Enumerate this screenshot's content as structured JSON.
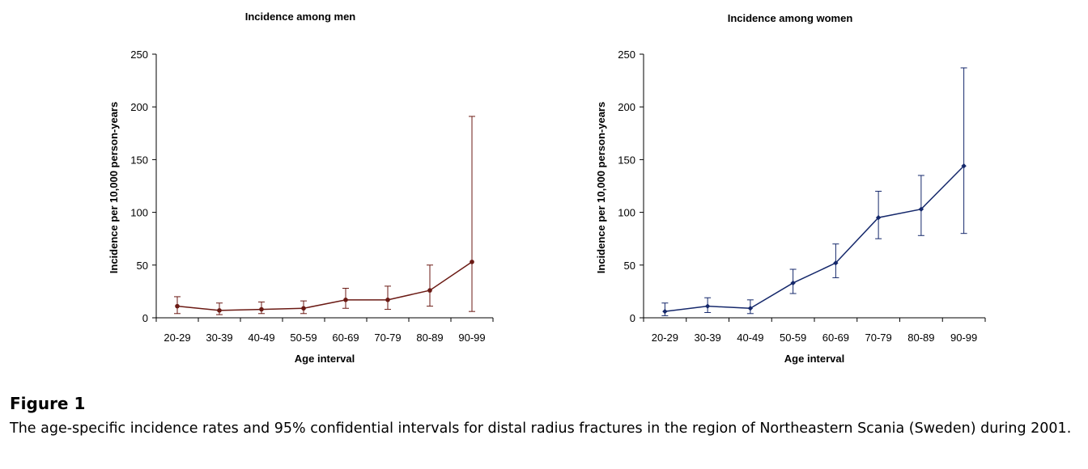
{
  "figure": {
    "label": "Figure 1",
    "caption": "The age-specific incidence rates and 95% confidential intervals for distal radius fractures in the region of Northeastern Scania (Sweden) during 2001."
  },
  "chart_data": [
    {
      "type": "line",
      "title": "Incidence among men",
      "xlabel": "Age interval",
      "ylabel": "Incidence per 10,000 person-years",
      "categories": [
        "20-29",
        "30-39",
        "40-49",
        "50-59",
        "60-69",
        "70-79",
        "80-89",
        "90-99"
      ],
      "values": [
        11,
        7,
        8,
        9,
        17,
        17,
        26,
        53
      ],
      "ci_lower": [
        4,
        3,
        4,
        4,
        9,
        8,
        11,
        6
      ],
      "ci_upper": [
        20,
        14,
        15,
        16,
        28,
        30,
        50,
        191
      ],
      "ylim": [
        0,
        250
      ],
      "yticks": [
        0,
        50,
        100,
        150,
        200,
        250
      ],
      "color": "#6b1a14",
      "grid": false
    },
    {
      "type": "line",
      "title": "Incidence among women",
      "xlabel": "Age interval",
      "ylabel": "Incidence per 10,000 person-years",
      "categories": [
        "20-29",
        "30-39",
        "40-49",
        "50-59",
        "60-69",
        "70-79",
        "80-89",
        "90-99"
      ],
      "values": [
        6,
        11,
        9,
        33,
        52,
        95,
        103,
        144
      ],
      "ci_lower": [
        2,
        5,
        4,
        23,
        38,
        75,
        78,
        80
      ],
      "ci_upper": [
        14,
        19,
        17,
        46,
        70,
        120,
        135,
        237
      ],
      "ylim": [
        0,
        250
      ],
      "yticks": [
        0,
        50,
        100,
        150,
        200,
        250
      ],
      "color": "#15286b",
      "grid": false
    }
  ]
}
